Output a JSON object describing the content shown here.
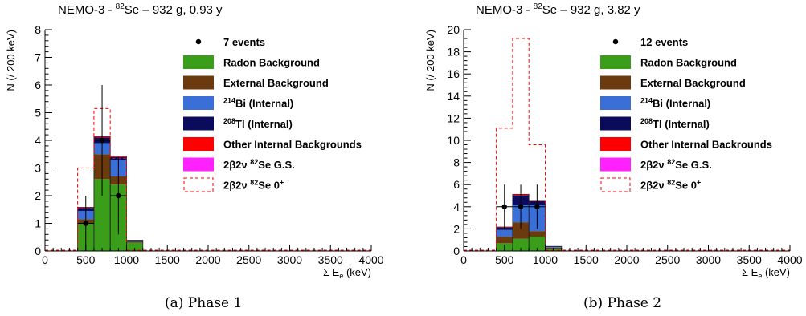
{
  "colors": {
    "radon": "#3a9e1a",
    "external": "#6b3a0e",
    "bi214": "#3a6fd8",
    "tl208": "#0b0b5e",
    "other": "#ff0000",
    "gs": "#ff22ff",
    "signal": "#ff0000"
  },
  "chart_data": [
    {
      "type": "bar",
      "title_prefix": "NEMO-3 - ",
      "title_sup": "82",
      "title_suffix": "Se – 932 g, 0.93 y",
      "ylabel": "N (/ 200 keV)",
      "xlabel": "Σ E",
      "xlabel_sub": "e",
      "xlabel_unit": " (keV)",
      "xlim": [
        0,
        4000
      ],
      "ylim": [
        0,
        8
      ],
      "x_ticks": [
        "0",
        "500",
        "1000",
        "1500",
        "2000",
        "2500",
        "3000",
        "3500",
        "4000"
      ],
      "y_ticks": [
        "0",
        "1",
        "2",
        "3",
        "4",
        "5",
        "6",
        "7",
        "8"
      ],
      "bin_edges": [
        400,
        600,
        800,
        1000,
        1200
      ],
      "stack": [
        {
          "key": "radon",
          "values": [
            1.0,
            2.6,
            2.4,
            0.3
          ]
        },
        {
          "key": "external",
          "values": [
            0.15,
            0.9,
            0.3,
            0.05
          ]
        },
        {
          "key": "bi214",
          "values": [
            0.3,
            0.4,
            0.6,
            0.03
          ]
        },
        {
          "key": "tl208",
          "values": [
            0.1,
            0.2,
            0.1,
            0.01
          ]
        },
        {
          "key": "other",
          "values": [
            0.02,
            0.03,
            0.02,
            0.0
          ]
        },
        {
          "key": "gs",
          "values": [
            0.01,
            0.01,
            0.01,
            0.0
          ]
        }
      ],
      "signal": {
        "bins": [
          [
            400,
            600,
            3.0
          ],
          [
            600,
            800,
            5.15
          ],
          [
            800,
            1000,
            3.35
          ]
        ]
      },
      "data_points": [
        {
          "x": 500,
          "y": 1,
          "low": 0,
          "high": 2
        },
        {
          "x": 700,
          "y": 4,
          "low": 2,
          "high": 6
        },
        {
          "x": 900,
          "y": 2,
          "low": 0.6,
          "high": 3.4
        }
      ],
      "legend": [
        {
          "key": "points",
          "text": "7 events"
        },
        {
          "key": "radon",
          "text": "Radon Background"
        },
        {
          "key": "external",
          "text": "External Background"
        },
        {
          "key": "bi214",
          "sup": "214",
          "text": "Bi (Internal)"
        },
        {
          "key": "tl208",
          "sup": "208",
          "text": "Tl (Internal)"
        },
        {
          "key": "other",
          "text": "Other Internal Backgrounds"
        },
        {
          "key": "gs",
          "text": "2β2ν ",
          "sup2": "82",
          "text2": "Se G.S."
        },
        {
          "key": "signal",
          "text": "2β2ν ",
          "sup2": "82",
          "text2": "Se 0",
          "sup3": "+"
        }
      ],
      "caption": "(a) Phase 1"
    },
    {
      "type": "bar",
      "title_prefix": "NEMO-3 - ",
      "title_sup": "82",
      "title_suffix": "Se – 932 g, 3.82 y",
      "ylabel": "N (/ 200 keV)",
      "xlabel": "Σ E",
      "xlabel_sub": "e",
      "xlabel_unit": " (keV)",
      "xlim": [
        0,
        4000
      ],
      "ylim": [
        0,
        20
      ],
      "x_ticks": [
        "0",
        "500",
        "1000",
        "1500",
        "2000",
        "2500",
        "3000",
        "3500",
        "4000"
      ],
      "y_ticks": [
        "0",
        "2",
        "4",
        "6",
        "8",
        "10",
        "12",
        "14",
        "16",
        "18",
        "20"
      ],
      "bin_edges": [
        400,
        600,
        800,
        1000,
        1200
      ],
      "stack": [
        {
          "key": "radon",
          "values": [
            0.7,
            1.1,
            1.3,
            0.2
          ]
        },
        {
          "key": "external",
          "values": [
            0.6,
            1.5,
            0.5,
            0.1
          ]
        },
        {
          "key": "bi214",
          "values": [
            0.6,
            1.6,
            2.4,
            0.1
          ]
        },
        {
          "key": "tl208",
          "values": [
            0.2,
            0.8,
            0.3,
            0.02
          ]
        },
        {
          "key": "other",
          "values": [
            0.05,
            0.1,
            0.05,
            0.0
          ]
        },
        {
          "key": "gs",
          "values": [
            0.02,
            0.02,
            0.02,
            0.0
          ]
        }
      ],
      "signal": {
        "bins": [
          [
            400,
            600,
            11.1
          ],
          [
            600,
            800,
            19.2
          ],
          [
            800,
            1000,
            9.6
          ]
        ]
      },
      "data_points": [
        {
          "x": 500,
          "y": 4,
          "low": 2,
          "high": 6
        },
        {
          "x": 700,
          "y": 4,
          "low": 2,
          "high": 6
        },
        {
          "x": 900,
          "y": 4,
          "low": 2,
          "high": 6
        }
      ],
      "legend": [
        {
          "key": "points",
          "text": "12 events"
        },
        {
          "key": "radon",
          "text": "Radon Background"
        },
        {
          "key": "external",
          "text": "External Background"
        },
        {
          "key": "bi214",
          "sup": "214",
          "text": "Bi (Internal)"
        },
        {
          "key": "tl208",
          "sup": "208",
          "text": "Tl (Internal)"
        },
        {
          "key": "other",
          "text": "Other Internal Backrounds"
        },
        {
          "key": "gs",
          "text": "2β2ν ",
          "sup2": "82",
          "text2": "Se G.S."
        },
        {
          "key": "signal",
          "text": "2β2ν ",
          "sup2": "82",
          "text2": "Se 0",
          "sup3": "+"
        }
      ],
      "caption": "(b) Phase 2"
    }
  ]
}
